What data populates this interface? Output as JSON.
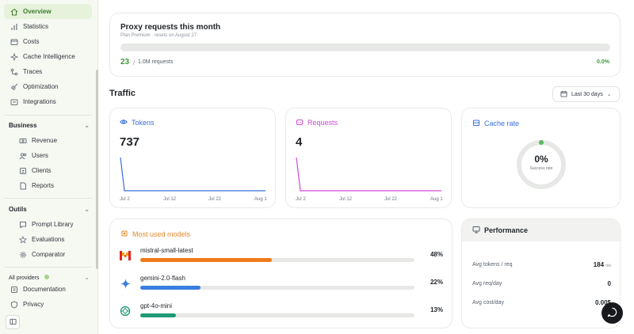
{
  "sidebar": {
    "items": [
      {
        "label": "Overview",
        "icon": "home-icon",
        "active": true
      },
      {
        "label": "Statistics",
        "icon": "bar-chart-icon"
      },
      {
        "label": "Costs",
        "icon": "wallet-icon"
      },
      {
        "label": "Cache Intelligence",
        "icon": "sparkle-icon"
      },
      {
        "label": "Traces",
        "icon": "trace-icon"
      },
      {
        "label": "Optimization",
        "icon": "rocket-icon"
      },
      {
        "label": "Integrations",
        "icon": "integration-icon"
      }
    ],
    "business": {
      "title": "Business",
      "items": [
        {
          "label": "Revenue",
          "icon": "money-icon"
        },
        {
          "label": "Users",
          "icon": "users-icon"
        },
        {
          "label": "Clients",
          "icon": "clients-icon"
        },
        {
          "label": "Reports",
          "icon": "report-icon"
        }
      ]
    },
    "outils": {
      "title": "Outils",
      "items": [
        {
          "label": "Prompt Library",
          "icon": "message-icon"
        },
        {
          "label": "Evaluations",
          "icon": "star-icon"
        },
        {
          "label": "Comparator",
          "icon": "gear-icon"
        }
      ]
    },
    "providers_title": "All providers",
    "bottom": [
      {
        "label": "Documentation",
        "icon": "doc-icon"
      },
      {
        "label": "Privacy",
        "icon": "shield-icon"
      }
    ]
  },
  "proxy": {
    "title": "Proxy requests this month",
    "subtitle": "Plan Premium · resets on August 27",
    "count": "23",
    "separator": "/",
    "limit": "1.0M requests",
    "percent": "0.0%",
    "fill_fraction": 0.0
  },
  "traffic": {
    "title": "Traffic",
    "range_label": "Last 30 days"
  },
  "tokens": {
    "label": "Tokens",
    "value": "737",
    "ticks": [
      "Jul 2",
      "Jul 12",
      "Jul 22",
      "Aug 1"
    ],
    "color": "#3b6fd8"
  },
  "requests": {
    "label": "Requests",
    "value": "4",
    "ticks": [
      "Jul 2",
      "Jul 12",
      "Jul 22",
      "Aug 1"
    ],
    "color": "#d04ad6"
  },
  "cache": {
    "label": "Cache rate",
    "value": "0%",
    "sub": "Success rate",
    "color": "#3b6fd8"
  },
  "models": {
    "label": "Most used models",
    "items": [
      {
        "name": "mistral-small-latest",
        "pct": "48%",
        "fraction": 0.48,
        "color": "#f07a1a",
        "logo": "mistral-logo-icon"
      },
      {
        "name": "gemini-2.0-flash",
        "pct": "22%",
        "fraction": 0.22,
        "color": "#3b7fe0",
        "logo": "gemini-logo-icon"
      },
      {
        "name": "gpt-4o-mini",
        "pct": "13%",
        "fraction": 0.13,
        "color": "#1f9a77",
        "logo": "openai-logo-icon"
      }
    ]
  },
  "performance": {
    "title": "Performance",
    "rows": [
      {
        "label": "Avg tokens / req",
        "value": "184",
        "unit": "tok"
      },
      {
        "label": "Avg req/day",
        "value": "0",
        "unit": ""
      },
      {
        "label": "Avg cost/day",
        "value": "0.00$",
        "unit": ""
      }
    ]
  }
}
